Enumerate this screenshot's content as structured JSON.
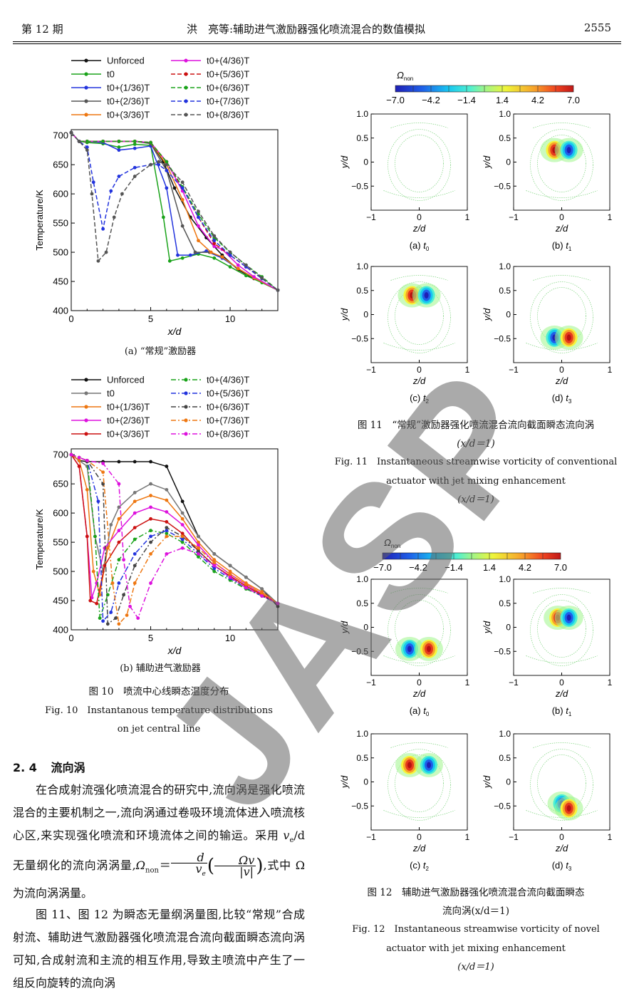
{
  "header": {
    "issue": "第 12 期",
    "running_title": "洪　亮等:辅助进气激励器强化喷流混合的数值模拟",
    "page_number": "2555"
  },
  "figures": {
    "fig10": {
      "sub_a": "(a) “常规”激励器",
      "sub_b": "(b) 辅助进气激励器",
      "caption_cn": "图 10　喷流中心线瞬态温度分布",
      "caption_en_1": "Fig. 10　Instantanous temperature distributions",
      "caption_en_2": "on jet central line"
    },
    "fig11": {
      "caption_cn_1": "图 11　“常规”激励器强化喷流混合流向截面瞬态流向涡",
      "caption_cn_2": "(x/d＝1)",
      "caption_en_1": "Fig. 11　Instantaneous streamwise vorticity of conventional",
      "caption_en_2": "actuator with jet mixing enhancement",
      "caption_en_3": "(x/d＝1)"
    },
    "fig12": {
      "caption_cn_1": "图 12　辅助进气激励器强化喷流混合流向截面瞬态",
      "caption_cn_2": "流向涡(x/d＝1)",
      "caption_en_1": "Fig. 12　Instantaneous streamwise vorticity of novel",
      "caption_en_2": "actuator with jet mixing enhancement",
      "caption_en_3": "(x/d＝1)"
    },
    "panel_labels": [
      "(a) t0",
      "(b) t1",
      "(c) t2",
      "(d) t3"
    ],
    "colorbar_title": "Ωnon",
    "colorbar_ticks": [
      "−7.0",
      "−4.2",
      "−1.4",
      "1.4",
      "4.2",
      "7.0"
    ]
  },
  "chart_data": [
    {
      "type": "line",
      "panel": "(a)",
      "xlabel": "x/d",
      "ylabel": "Temperature/K",
      "xlim": [
        0,
        13
      ],
      "ylim": [
        400,
        710
      ],
      "xticks": [
        0,
        5,
        10
      ],
      "yticks": [
        400,
        450,
        500,
        550,
        600,
        650,
        700
      ],
      "legend_position": "top",
      "series": [
        {
          "name": "Unforced",
          "color": "#111111",
          "dash": "",
          "x": [
            0,
            0.5,
            1,
            2,
            3,
            4,
            5,
            5.8,
            6.5,
            7.5,
            8.5,
            9.5,
            10.5,
            11.5,
            13
          ],
          "y": [
            705,
            690,
            690,
            690,
            690,
            690,
            688,
            655,
            610,
            560,
            525,
            495,
            470,
            455,
            435
          ]
        },
        {
          "name": "t0",
          "color": "#1aa31a",
          "dash": "",
          "x": [
            0,
            0.5,
            1,
            2,
            3,
            4,
            5,
            5.8,
            6.2,
            7,
            8,
            9,
            10,
            11,
            12,
            13
          ],
          "y": [
            705,
            690,
            688,
            686,
            680,
            685,
            683,
            560,
            485,
            490,
            497,
            490,
            475,
            460,
            448,
            435
          ]
        },
        {
          "name": "t0+(1/36)T",
          "color": "#2233dd",
          "dash": "",
          "x": [
            0,
            0.5,
            1,
            2,
            3,
            4,
            5,
            6,
            6.7,
            7.5,
            8.5,
            9.5,
            10.5,
            11.5,
            13
          ],
          "y": [
            705,
            690,
            690,
            688,
            675,
            678,
            682,
            610,
            495,
            495,
            502,
            490,
            472,
            456,
            435
          ]
        },
        {
          "name": "t0+(2/36)T",
          "color": "#555555",
          "dash": "",
          "x": [
            0,
            0.5,
            1,
            2,
            3,
            4,
            5,
            6,
            7,
            7.8,
            8.7,
            9.5,
            10.5,
            11.5,
            13
          ],
          "y": [
            705,
            690,
            690,
            690,
            690,
            690,
            686,
            640,
            545,
            500,
            500,
            492,
            472,
            456,
            435
          ]
        },
        {
          "name": "t0+(3/36)T",
          "color": "#ee7711",
          "dash": "",
          "x": [
            0,
            0.5,
            1,
            2,
            3,
            4,
            5,
            6,
            7,
            8,
            8.8,
            9.5,
            10.5,
            11.5,
            13
          ],
          "y": [
            705,
            690,
            690,
            690,
            690,
            690,
            688,
            650,
            590,
            520,
            500,
            492,
            472,
            456,
            435
          ]
        },
        {
          "name": "t0+(4/36)T",
          "color": "#dd11dd",
          "dash": "",
          "x": [
            0,
            0.5,
            1,
            2,
            3,
            4,
            5,
            6,
            7,
            8,
            9,
            9.5,
            10.5,
            11.5,
            13
          ],
          "y": [
            705,
            690,
            690,
            690,
            690,
            690,
            688,
            655,
            605,
            545,
            510,
            505,
            478,
            458,
            435
          ]
        },
        {
          "name": "t0+(5/36)T",
          "color": "#cc1111",
          "dash": "6,3",
          "x": [
            0,
            0.5,
            1,
            2,
            3,
            4,
            5,
            6,
            7,
            8,
            9,
            10,
            11,
            12,
            13
          ],
          "y": [
            705,
            690,
            690,
            690,
            690,
            690,
            688,
            655,
            610,
            560,
            515,
            495,
            475,
            455,
            435
          ]
        },
        {
          "name": "t0+(6/36)T",
          "color": "#1aa31a",
          "dash": "6,3",
          "x": [
            0,
            0.5,
            1,
            2,
            3,
            4,
            5,
            6,
            7,
            8,
            9,
            10,
            11,
            12,
            13
          ],
          "y": [
            705,
            690,
            690,
            690,
            690,
            690,
            688,
            655,
            612,
            565,
            525,
            500,
            478,
            458,
            435
          ]
        },
        {
          "name": "t0+(7/36)T",
          "color": "#2233dd",
          "dash": "6,3",
          "x": [
            0,
            0.5,
            1,
            1.4,
            2,
            2.5,
            3,
            4,
            5,
            5.5,
            6,
            7,
            8,
            9,
            10,
            11,
            12,
            13
          ],
          "y": [
            705,
            690,
            680,
            620,
            540,
            605,
            630,
            645,
            650,
            650,
            640,
            610,
            560,
            520,
            495,
            475,
            455,
            435
          ]
        },
        {
          "name": "t0+(8/36)T",
          "color": "#555555",
          "dash": "6,3",
          "x": [
            0,
            0.5,
            1,
            1.3,
            1.7,
            2.2,
            2.7,
            3.2,
            4,
            5,
            5.5,
            6,
            7,
            8,
            9,
            10,
            11,
            12,
            13
          ],
          "y": [
            705,
            690,
            675,
            600,
            485,
            500,
            560,
            600,
            630,
            650,
            655,
            650,
            620,
            570,
            528,
            500,
            478,
            456,
            435
          ]
        }
      ]
    },
    {
      "type": "line",
      "panel": "(b)",
      "xlabel": "x/d",
      "ylabel": "Temperature/K",
      "xlim": [
        0,
        13
      ],
      "ylim": [
        400,
        710
      ],
      "xticks": [
        0,
        5,
        10
      ],
      "yticks": [
        400,
        450,
        500,
        550,
        600,
        650,
        700
      ],
      "legend_position": "top",
      "series": [
        {
          "name": "Unforced",
          "color": "#111111",
          "dash": "",
          "x": [
            0,
            0.5,
            1,
            2,
            3,
            4,
            5,
            6,
            7,
            8,
            9,
            10,
            11,
            12,
            13
          ],
          "y": [
            700,
            690,
            688,
            688,
            688,
            688,
            688,
            680,
            620,
            560,
            530,
            510,
            490,
            470,
            440
          ]
        },
        {
          "name": "t0",
          "color": "#777777",
          "dash": "",
          "x": [
            0,
            0.5,
            1,
            1.5,
            2,
            2.5,
            3,
            4,
            5,
            6,
            7,
            8,
            9,
            10,
            11,
            12,
            13
          ],
          "y": [
            700,
            690,
            680,
            560,
            500,
            580,
            610,
            635,
            650,
            640,
            600,
            560,
            530,
            510,
            490,
            470,
            445
          ]
        },
        {
          "name": "t0+(1/36)T",
          "color": "#ee7711",
          "dash": "",
          "x": [
            0,
            0.5,
            1,
            1.4,
            1.8,
            2.3,
            3,
            4,
            5,
            6,
            7,
            8,
            9,
            10,
            11,
            12,
            13
          ],
          "y": [
            700,
            690,
            640,
            500,
            460,
            540,
            590,
            620,
            630,
            622,
            590,
            550,
            520,
            500,
            480,
            465,
            445
          ]
        },
        {
          "name": "t0+(2/36)T",
          "color": "#dd11dd",
          "dash": "",
          "x": [
            0,
            0.5,
            1,
            1.3,
            1.6,
            2.1,
            3,
            4,
            5,
            6,
            7,
            8,
            9,
            10,
            11,
            12,
            13
          ],
          "y": [
            700,
            680,
            560,
            455,
            480,
            540,
            570,
            600,
            610,
            602,
            580,
            545,
            515,
            495,
            478,
            462,
            445
          ]
        },
        {
          "name": "t0+(3/36)T",
          "color": "#cc1111",
          "dash": "",
          "x": [
            0,
            0.5,
            1,
            1.2,
            1.6,
            2.1,
            3,
            4,
            5,
            6,
            7,
            8,
            9,
            10,
            11,
            12,
            13
          ],
          "y": [
            700,
            680,
            560,
            450,
            445,
            510,
            550,
            575,
            590,
            585,
            565,
            535,
            510,
            492,
            475,
            460,
            445
          ]
        },
        {
          "name": "t0+(4/36)T",
          "color": "#1aa31a",
          "dash": "7,3,2,3",
          "x": [
            0,
            0.5,
            1,
            1.5,
            1.8,
            2.3,
            3,
            4,
            5,
            6,
            7,
            8,
            9,
            10,
            11,
            12,
            13
          ],
          "y": [
            700,
            695,
            690,
            560,
            420,
            460,
            520,
            555,
            570,
            565,
            550,
            525,
            500,
            485,
            470,
            458,
            445
          ]
        },
        {
          "name": "t0+(5/36)T",
          "color": "#2233dd",
          "dash": "7,3,2,3",
          "x": [
            0,
            0.5,
            1,
            1.7,
            2,
            2.5,
            3,
            4,
            5,
            6,
            7,
            8,
            9,
            10,
            11,
            12,
            13
          ],
          "y": [
            700,
            695,
            690,
            620,
            415,
            430,
            480,
            530,
            560,
            570,
            555,
            530,
            505,
            488,
            472,
            458,
            445
          ]
        },
        {
          "name": "t0+(6/36)T",
          "color": "#444444",
          "dash": "7,3,2,3",
          "x": [
            0,
            0.5,
            1,
            2,
            2.3,
            2.8,
            3.3,
            4,
            5,
            6,
            7,
            8,
            9,
            10,
            11,
            12,
            13
          ],
          "y": [
            700,
            695,
            690,
            650,
            410,
            420,
            460,
            510,
            550,
            575,
            560,
            535,
            510,
            490,
            472,
            458,
            445
          ]
        },
        {
          "name": "t0+(7/36)T",
          "color": "#ee7711",
          "dash": "7,3,2,3",
          "x": [
            0,
            0.5,
            1,
            2,
            2.6,
            3,
            3.5,
            4,
            5,
            6,
            7,
            8,
            9,
            10,
            11,
            12,
            13
          ],
          "y": [
            700,
            695,
            690,
            670,
            480,
            410,
            425,
            480,
            530,
            560,
            560,
            540,
            515,
            495,
            478,
            462,
            445
          ]
        },
        {
          "name": "t0+(8/36)T",
          "color": "#dd11dd",
          "dash": "7,3,2,3",
          "x": [
            0,
            0.5,
            1,
            2,
            3,
            3.3,
            3.7,
            4.2,
            5,
            6,
            7,
            8,
            9,
            10,
            11,
            12,
            13
          ],
          "y": [
            700,
            695,
            690,
            685,
            650,
            520,
            440,
            420,
            480,
            530,
            540,
            530,
            510,
            490,
            472,
            458,
            445
          ]
        }
      ]
    }
  ],
  "vorticity_panels": {
    "fig11": [
      {
        "label": "(a)",
        "time": "t0",
        "vortices": []
      },
      {
        "label": "(b)",
        "time": "t1",
        "vortices": [
          {
            "z": -0.15,
            "y": 0.25,
            "sign": "pos"
          },
          {
            "z": 0.15,
            "y": 0.25,
            "sign": "neg"
          }
        ]
      },
      {
        "label": "(c)",
        "time": "t2",
        "vortices": [
          {
            "z": -0.15,
            "y": 0.4,
            "sign": "pos"
          },
          {
            "z": 0.15,
            "y": 0.4,
            "sign": "neg"
          }
        ]
      },
      {
        "label": "(d)",
        "time": "t3",
        "vortices": [
          {
            "z": -0.15,
            "y": -0.48,
            "sign": "neg"
          },
          {
            "z": 0.15,
            "y": -0.48,
            "sign": "pos"
          }
        ]
      }
    ],
    "fig12": [
      {
        "label": "(a)",
        "time": "t0",
        "vortices": [
          {
            "z": -0.2,
            "y": -0.45,
            "sign": "neg"
          },
          {
            "z": 0.2,
            "y": -0.45,
            "sign": "pos"
          }
        ]
      },
      {
        "label": "(b)",
        "time": "t1",
        "vortices": [
          {
            "z": -0.08,
            "y": 0.2,
            "sign": "pos"
          },
          {
            "z": 0.15,
            "y": 0.2,
            "sign": "neg"
          }
        ]
      },
      {
        "label": "(c)",
        "time": "t2",
        "vortices": [
          {
            "z": -0.2,
            "y": 0.35,
            "sign": "pos"
          },
          {
            "z": 0.2,
            "y": 0.35,
            "sign": "neg"
          }
        ]
      },
      {
        "label": "(d)",
        "time": "t3",
        "vortices": [
          {
            "z": 0.0,
            "y": -0.45,
            "sign": "neg"
          },
          {
            "z": 0.15,
            "y": -0.55,
            "sign": "pos"
          }
        ]
      }
    ]
  },
  "vorticity_axes": {
    "xlabel": "z/d",
    "ylabel": "y/d",
    "xticks": [
      "−1",
      "0",
      "1"
    ],
    "yticks": [
      "1.0",
      "0.5",
      "0",
      "−0.5"
    ]
  },
  "section": {
    "number": "2. 4",
    "title": "流向涡"
  },
  "body": {
    "para1_a": "在合成射流强化喷流混合的研究中,流向涡是强化喷流混合的主要机制之一,流向涡通过卷吸环境流体进入喷流核心区,来实现强化喷流和环境流体之间的输运。采用 ",
    "para1_var": "v",
    "para1_sub": "e",
    "para1_b": "/d 无量纲化的流向涡涡量,",
    "eq_lhs": "Ω",
    "eq_lhs_sub": "non",
    "eq_frac_num": "d",
    "eq_frac_den": "v",
    "eq_frac_den_sub": "e",
    "eq_inner_num": "Ωv",
    "eq_inner_den": "|v|",
    "para1_c": ",式中 Ω 为流向涡涡量。",
    "para2": "图 11、图 12 为瞬态无量纲涡量图,比较“常规”合成射流、辅助进气激励器强化喷流混合流向截面瞬态流向涡可知,合成射流和主流的相互作用,导致主喷流中产生了一组反向旋转的流向涡"
  },
  "watermark": "JASP"
}
